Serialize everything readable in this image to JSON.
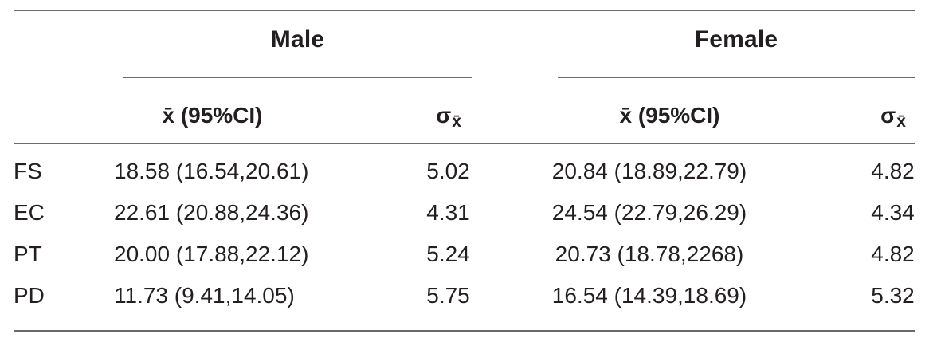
{
  "table": {
    "colors": {
      "text": "#231f20",
      "rule": "#6a6a6a",
      "background": "#ffffff"
    },
    "groups": [
      {
        "label": "Male"
      },
      {
        "label": "Female"
      }
    ],
    "columns": {
      "mean_label": "x̄ (95%CI)",
      "sigma_label": "σ",
      "sigma_sub_label": "x̄"
    },
    "rows": [
      {
        "label": "FS",
        "male_mean": "18.58 (16.54,20.61)",
        "male_sigma": "5.02",
        "female_mean": "20.84 (18.89,22.79)",
        "female_sigma": "4.82"
      },
      {
        "label": "EC",
        "male_mean": "22.61 (20.88,24.36)",
        "male_sigma": "4.31",
        "female_mean": "24.54 (22.79,26.29)",
        "female_sigma": "4.34"
      },
      {
        "label": "PT",
        "male_mean": "20.00 (17.88,22.12)",
        "male_sigma": "5.24",
        "female_mean": "20.73 (18.78,2268)",
        "female_sigma": "4.82"
      },
      {
        "label": "PD",
        "male_mean": "11.73 (9.41,14.05)",
        "male_sigma": "5.75",
        "female_mean": "16.54 (14.39,18.69)",
        "female_sigma": "5.32"
      }
    ]
  }
}
